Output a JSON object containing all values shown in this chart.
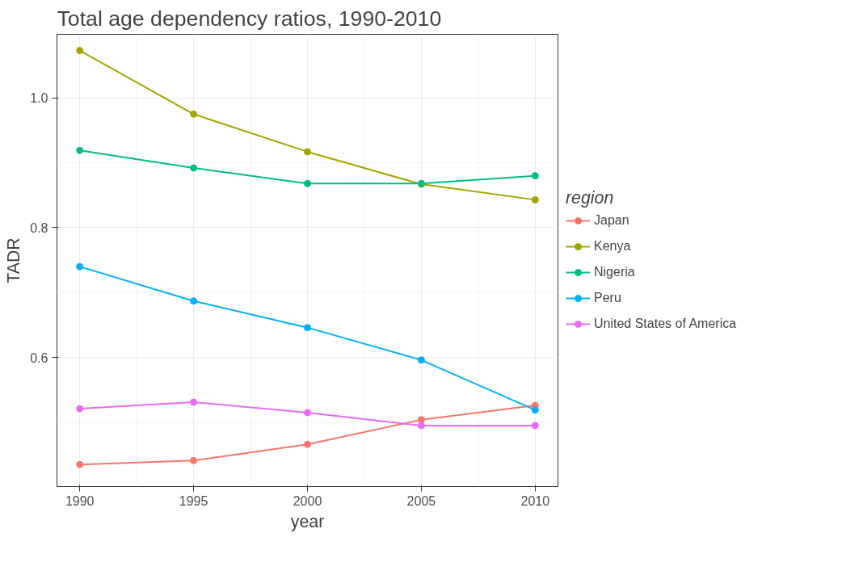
{
  "chart_data": {
    "type": "line",
    "title": "Total age dependency ratios, 1990-2010",
    "xlabel": "year",
    "ylabel": "TADR",
    "legend_title": "region",
    "x": [
      1990,
      1995,
      2000,
      2005,
      2010
    ],
    "series": [
      {
        "name": "Japan",
        "color": "#f8766d",
        "values": [
          0.435,
          0.441,
          0.466,
          0.504,
          0.526
        ]
      },
      {
        "name": "Kenya",
        "color": "#a3a500",
        "values": [
          1.073,
          0.975,
          0.917,
          0.867,
          0.843
        ]
      },
      {
        "name": "Nigeria",
        "color": "#00bf7d",
        "values": [
          0.919,
          0.892,
          0.868,
          0.868,
          0.88
        ]
      },
      {
        "name": "Peru",
        "color": "#00b0f6",
        "values": [
          0.74,
          0.687,
          0.646,
          0.596,
          0.519
        ]
      },
      {
        "name": "United States of America",
        "color": "#e76bf3",
        "values": [
          0.521,
          0.531,
          0.515,
          0.495,
          0.495
        ]
      }
    ],
    "xlim": [
      1989,
      2011
    ],
    "ylim": [
      0.401,
      1.098
    ],
    "xticks": [
      1990,
      1995,
      2000,
      2005,
      2010
    ],
    "yticks": [
      {
        "value": 0.6,
        "label": "0.6"
      },
      {
        "value": 0.8,
        "label": "0.8"
      },
      {
        "value": 1.0,
        "label": "1.0"
      }
    ],
    "grid": true,
    "legend": "right",
    "marker": "circle",
    "line_style": "solid"
  }
}
